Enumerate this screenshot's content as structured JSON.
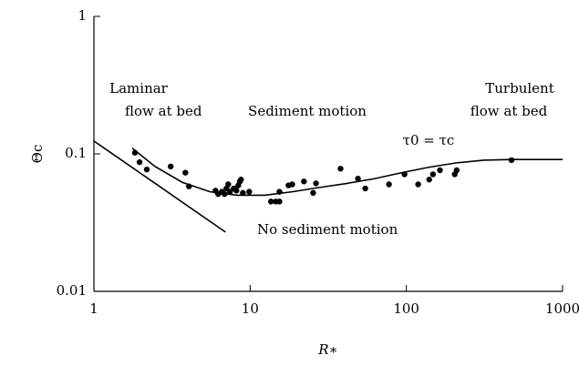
{
  "chart_data": {
    "type": "scatter",
    "xlabel": "R∗",
    "ylabel": "Θc",
    "xscale": "log",
    "yscale": "log",
    "xlim": [
      1,
      1000
    ],
    "ylim": [
      0.01,
      1
    ],
    "xticks": [
      1,
      10,
      100,
      1000
    ],
    "yticks": [
      0.01,
      0.1,
      1
    ],
    "annotations": [
      "Laminar",
      "flow at bed",
      "Sediment motion",
      "Turbulent",
      "flow at bed",
      "τ0 = τc",
      "No sediment motion"
    ],
    "series": [
      {
        "style": "points",
        "color": "#000000",
        "x": [
          1.83,
          1.96,
          2.18,
          3.1,
          3.85,
          4.06,
          6.0,
          6.24,
          6.59,
          6.86,
          7.05,
          7.24,
          7.43,
          7.85,
          8.17,
          8.4,
          8.6,
          8.74,
          8.98,
          9.86,
          13.6,
          14.6,
          15.4,
          15.4,
          17.6,
          18.6,
          22.1,
          25.3,
          26.4,
          37.9,
          49,
          54.6,
          77.4,
          97.3,
          119,
          140,
          148,
          164,
          204,
          210,
          471
        ],
        "values": [
          0.102,
          0.087,
          0.077,
          0.081,
          0.073,
          0.058,
          0.054,
          0.051,
          0.053,
          0.051,
          0.056,
          0.06,
          0.053,
          0.056,
          0.054,
          0.059,
          0.063,
          0.065,
          0.052,
          0.053,
          0.045,
          0.045,
          0.045,
          0.053,
          0.059,
          0.06,
          0.063,
          0.052,
          0.061,
          0.078,
          0.066,
          0.056,
          0.06,
          0.071,
          0.06,
          0.065,
          0.071,
          0.076,
          0.071,
          0.076,
          0.09
        ]
      },
      {
        "style": "curve",
        "color": "#000000",
        "x": [
          1.76,
          2.46,
          3.69,
          5.53,
          8.28,
          12.4,
          18.6,
          27.9,
          41.8,
          62.6,
          93.7,
          140,
          209,
          313,
          471,
          1000
        ],
        "values": [
          0.11,
          0.081,
          0.062,
          0.053,
          0.05,
          0.05,
          0.053,
          0.057,
          0.061,
          0.066,
          0.073,
          0.08,
          0.086,
          0.09,
          0.091,
          0.091
        ]
      },
      {
        "style": "curve",
        "color": "#000000",
        "x": [
          1,
          6.95
        ],
        "values": [
          0.124,
          0.027
        ]
      }
    ]
  }
}
